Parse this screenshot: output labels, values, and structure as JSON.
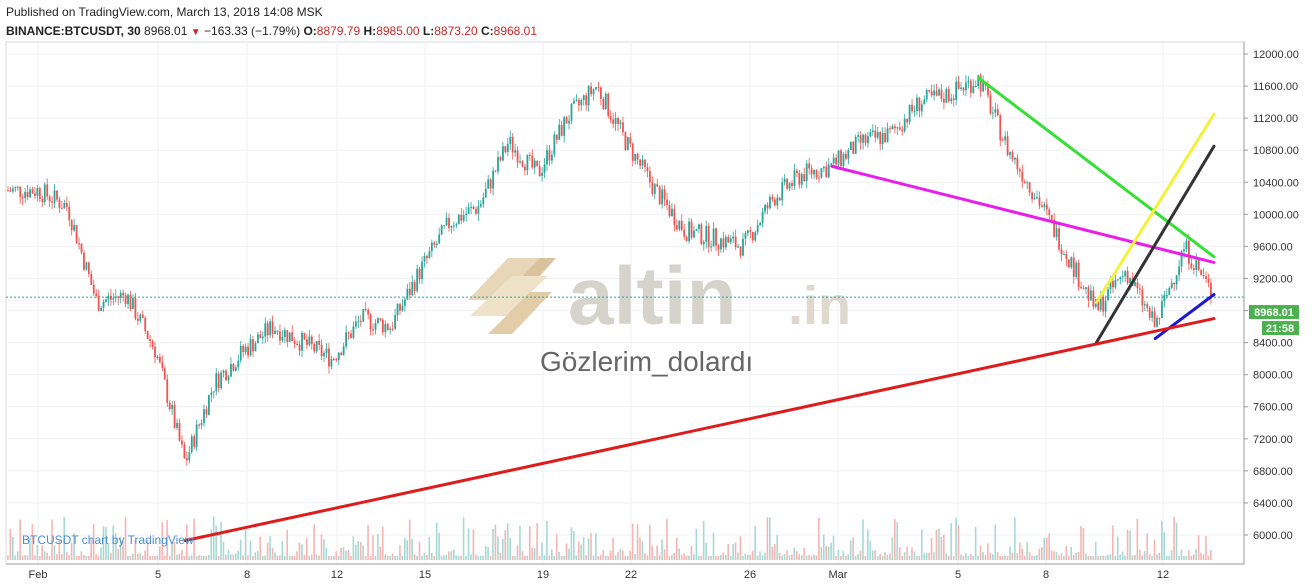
{
  "header": {
    "published": "Published on TradingView.com, March 13, 2018 14:08 MSK",
    "symbol": "BINANCE:BTCUSDT, 30",
    "last": "8968.01",
    "change": "−163.33 (−1.79%)",
    "o_label": "O:",
    "o_value": "8879.79",
    "h_label": "H:",
    "h_value": "8985.00",
    "l_label": "L:",
    "l_value": "8873.20",
    "c_label": "C:",
    "c_value": "8968.01"
  },
  "watermark": {
    "brand": "altin",
    "brand_suffix": ".in",
    "caption": "Gözlerim_dolardı"
  },
  "footer_credit": "BTCUSDT chart by TradingView",
  "price_tag": {
    "price": "8968.01",
    "countdown": "21:58"
  },
  "colors": {
    "up": "#26a69a",
    "down": "#ef5350",
    "magenta": "#e91ee9",
    "green": "#33e033",
    "yellow": "#f2f23a",
    "black": "#333333",
    "blue": "#1a1ad6",
    "red": "#e01b1b",
    "price_tag": "#4caf50"
  },
  "chart_data": {
    "type": "line",
    "title": "",
    "xlabel": "",
    "ylabel": "",
    "ylim": [
      5700,
      12100
    ],
    "y_ticks": [
      "12000.00",
      "11600.00",
      "11200.00",
      "10800.00",
      "10400.00",
      "10000.00",
      "9600.00",
      "9200.00",
      "8800.00",
      "8400.00",
      "8000.00",
      "7600.00",
      "7200.00",
      "6800.00",
      "6400.00",
      "6000.00"
    ],
    "x_ticks": [
      "Feb",
      "5",
      "8",
      "12",
      "15",
      "19",
      "22",
      "26",
      "Mar",
      "5",
      "8",
      "12"
    ],
    "current_price": 8968.01,
    "series": [
      {
        "x": [
          "Feb 1",
          "Feb 2",
          "Feb 3",
          "Feb 4",
          "Feb 5",
          "Feb 6",
          "Feb 7",
          "Feb 8",
          "Feb 9",
          "Feb 10",
          "Feb 11",
          "Feb 12",
          "Feb 13",
          "Feb 14",
          "Feb 15",
          "Feb 16",
          "Feb 17",
          "Feb 18",
          "Feb 19",
          "Feb 20",
          "Feb 21",
          "Feb 22",
          "Feb 23",
          "Feb 24",
          "Feb 25",
          "Feb 26",
          "Feb 27",
          "Feb 28",
          "Mar 1",
          "Mar 2",
          "Mar 3",
          "Mar 4",
          "Mar 5",
          "Mar 6",
          "Mar 7",
          "Mar 8",
          "Mar 9",
          "Mar 10",
          "Mar 11",
          "Mar 12",
          "Mar 13"
        ],
        "values": [
          10300,
          10100,
          8900,
          9000,
          8300,
          6900,
          7900,
          8300,
          8600,
          8400,
          8200,
          8700,
          8600,
          9300,
          9900,
          10100,
          10900,
          10500,
          11200,
          11600,
          10900,
          10300,
          9800,
          9700,
          9600,
          10200,
          10500,
          10600,
          10900,
          11000,
          11400,
          11500,
          11700,
          10800,
          10200,
          9500,
          8800,
          9300,
          8600,
          9600,
          8968
        ]
      }
    ],
    "trendlines": [
      {
        "color": "magenta",
        "from": [
          "Feb 28",
          10600
        ],
        "to": [
          "Mar 13",
          9400
        ]
      },
      {
        "color": "green",
        "from": [
          "Mar 5",
          11700
        ],
        "to": [
          "Mar 13",
          9470
        ]
      },
      {
        "color": "yellow",
        "from": [
          "Mar 9",
          8900
        ],
        "to": [
          "Mar 13",
          11250
        ]
      },
      {
        "color": "black",
        "from": [
          "Mar 9",
          8400
        ],
        "to": [
          "Mar 13",
          10850
        ]
      },
      {
        "color": "blue",
        "from": [
          "Mar 11",
          8450
        ],
        "to": [
          "Mar 13",
          9000
        ]
      },
      {
        "color": "red",
        "from": [
          "Feb 6",
          5930
        ],
        "to": [
          "Mar 13",
          8700
        ]
      }
    ]
  }
}
